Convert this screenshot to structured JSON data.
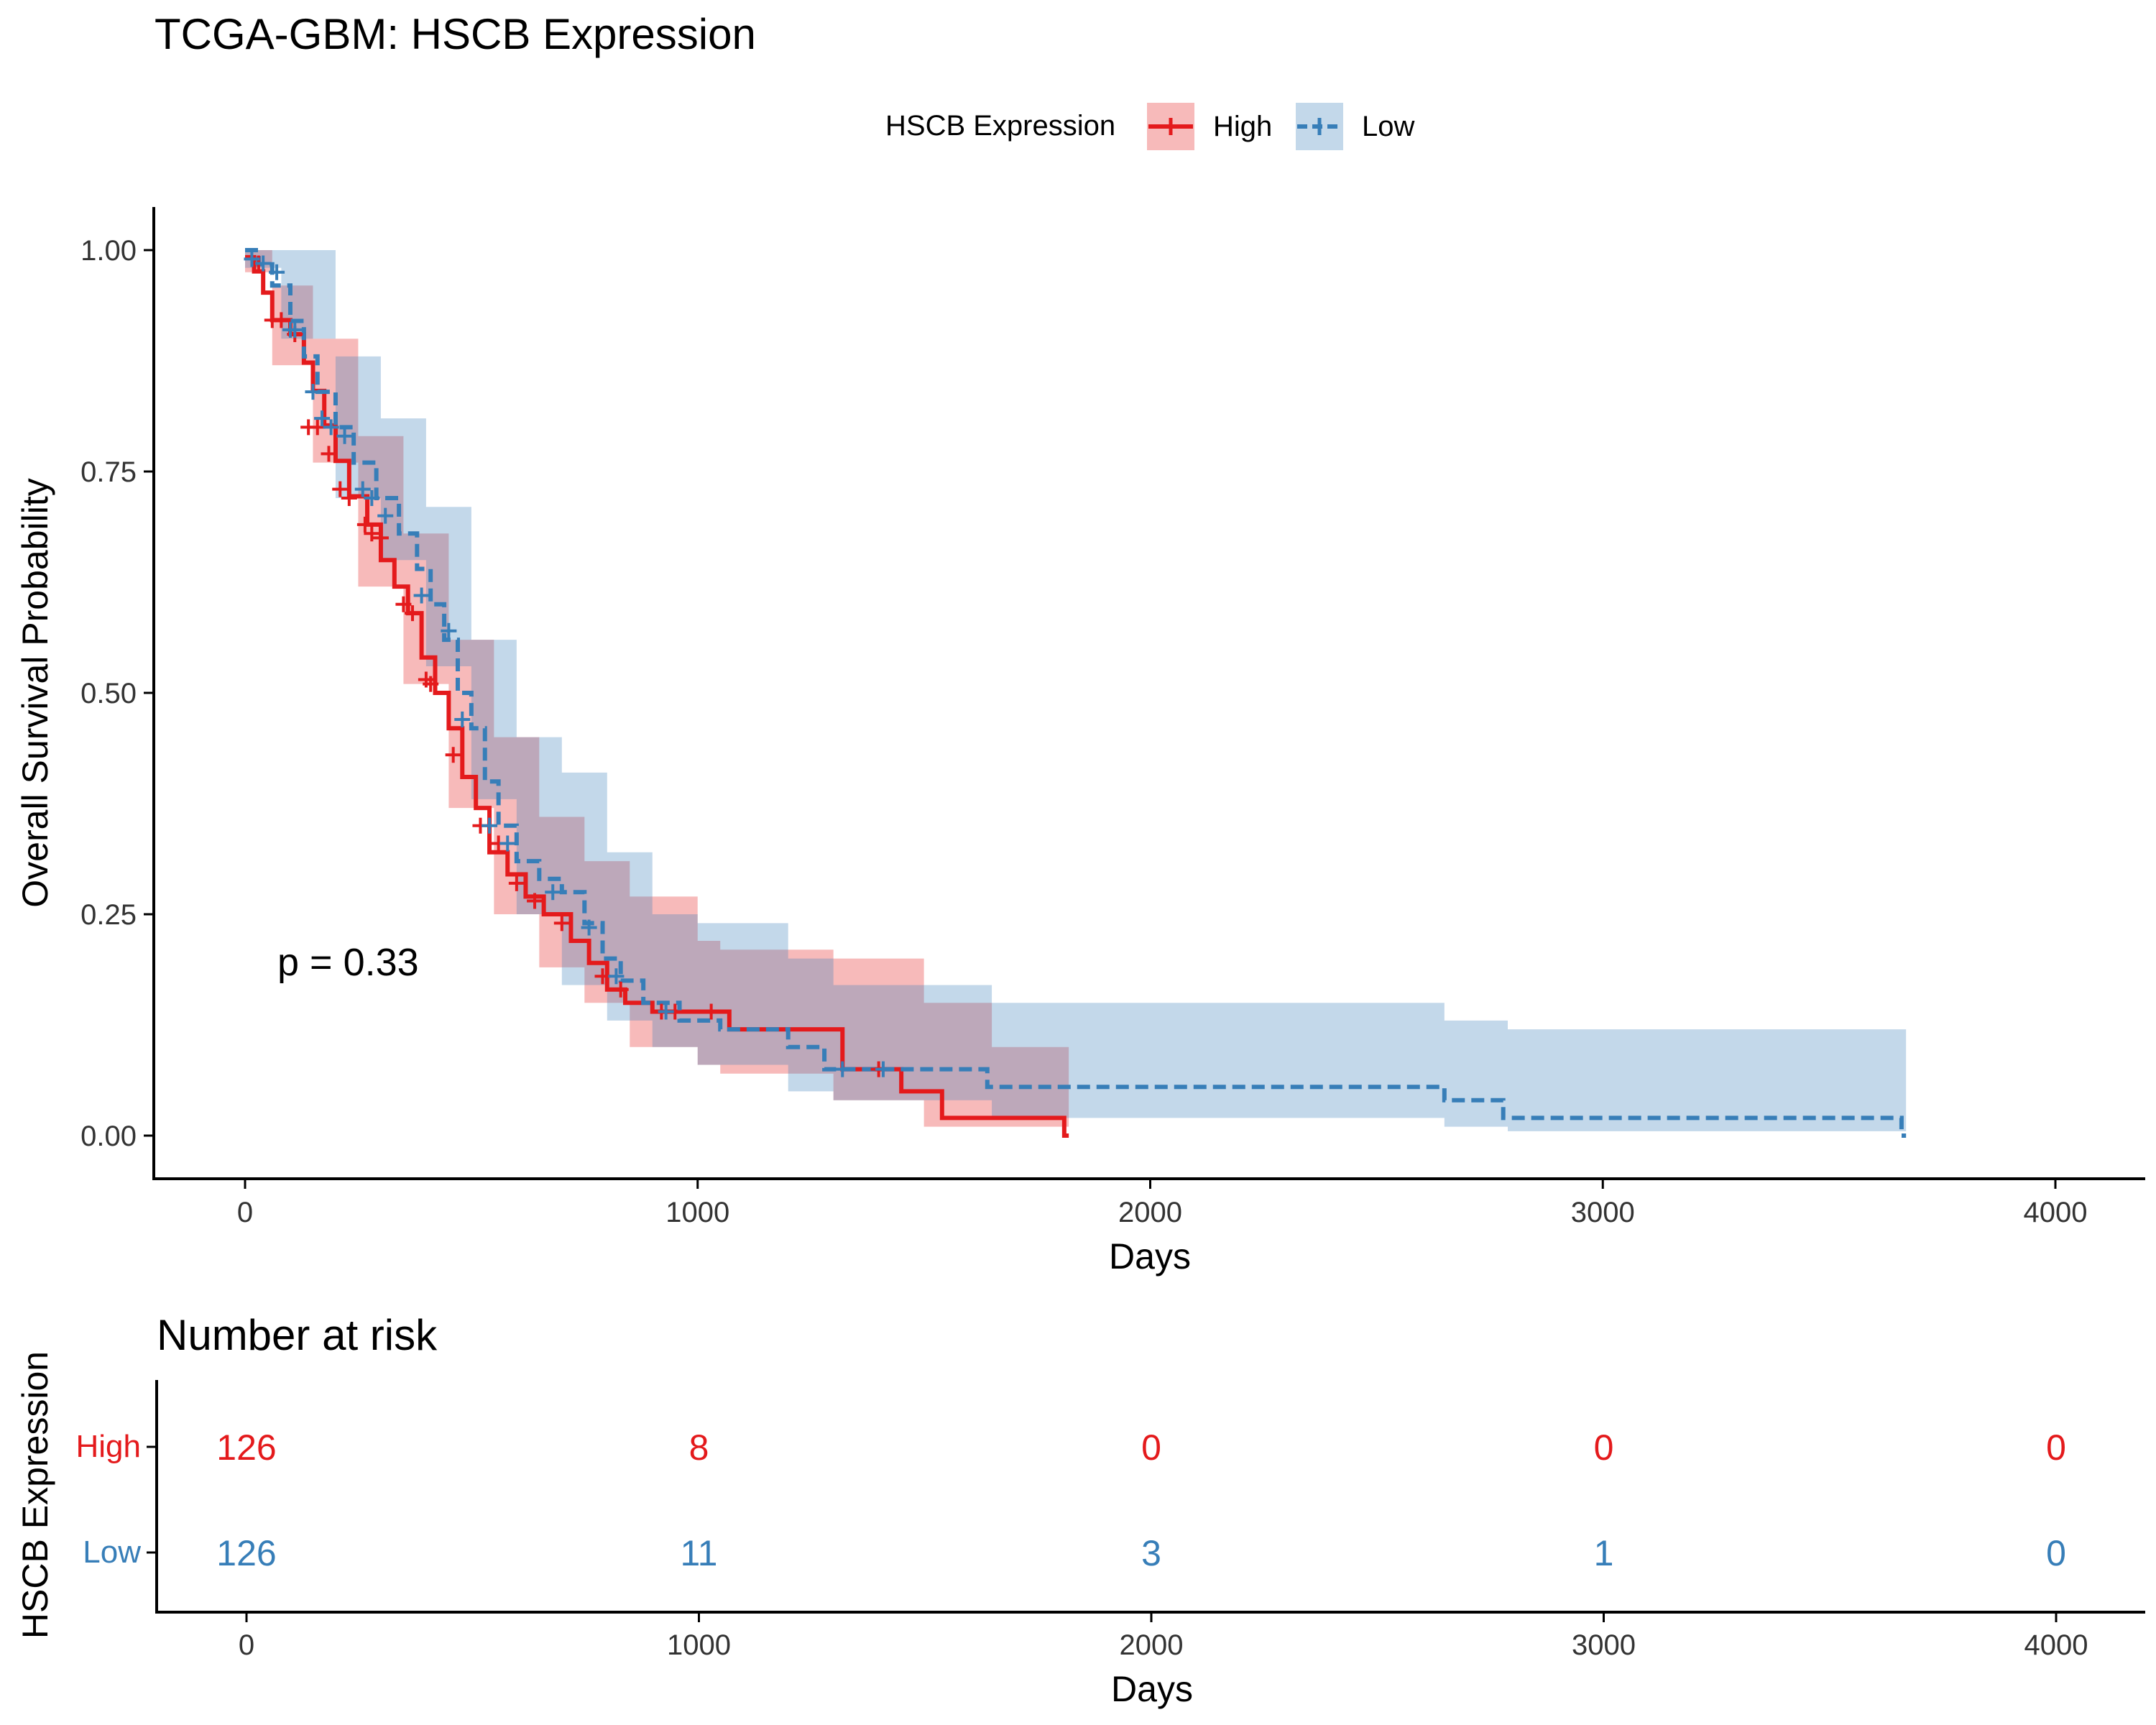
{
  "chart_data": [
    {
      "type": "line",
      "subtype": "kaplan-meier",
      "title": "TCGA-GBM: HSCB Expression",
      "xlabel": "Days",
      "ylabel": "Overall Survival Probability",
      "xlim": [
        -200,
        4200
      ],
      "ylim": [
        -0.05,
        1.05
      ],
      "x_ticks": [
        "0",
        "1000",
        "2000",
        "3000",
        "4000"
      ],
      "y_ticks": [
        "0.00",
        "0.25",
        "0.50",
        "0.75",
        "1.00"
      ],
      "legend": {
        "title": "HSCB Expression",
        "position": "top"
      },
      "annotation": "p = 0.33",
      "colors": {
        "High": "#E41A1C",
        "Low": "#377EB8"
      },
      "series": [
        {
          "name": "High",
          "line_style": "solid",
          "steps": [
            [
              0,
              0.992
            ],
            [
              20,
              0.976
            ],
            [
              40,
              0.952
            ],
            [
              60,
              0.921
            ],
            [
              100,
              0.905
            ],
            [
              130,
              0.873
            ],
            [
              150,
              0.841
            ],
            [
              175,
              0.802
            ],
            [
              200,
              0.762
            ],
            [
              230,
              0.722
            ],
            [
              270,
              0.69
            ],
            [
              300,
              0.65
            ],
            [
              330,
              0.62
            ],
            [
              360,
              0.59
            ],
            [
              390,
              0.54
            ],
            [
              420,
              0.5
            ],
            [
              450,
              0.46
            ],
            [
              480,
              0.405
            ],
            [
              510,
              0.37
            ],
            [
              540,
              0.32
            ],
            [
              580,
              0.295
            ],
            [
              620,
              0.27
            ],
            [
              660,
              0.25
            ],
            [
              720,
              0.22
            ],
            [
              760,
              0.195
            ],
            [
              800,
              0.165
            ],
            [
              840,
              0.15
            ],
            [
              900,
              0.14
            ],
            [
              1070,
              0.12
            ],
            [
              1320,
              0.075
            ],
            [
              1450,
              0.05
            ],
            [
              1540,
              0.02
            ],
            [
              1810,
              0.0
            ]
          ],
          "end": 1820,
          "ci": [
            [
              0,
              1.0,
              0.975
            ],
            [
              60,
              0.96,
              0.87
            ],
            [
              150,
              0.9,
              0.76
            ],
            [
              250,
              0.79,
              0.62
            ],
            [
              350,
              0.68,
              0.51
            ],
            [
              450,
              0.56,
              0.37
            ],
            [
              550,
              0.45,
              0.25
            ],
            [
              650,
              0.36,
              0.19
            ],
            [
              750,
              0.31,
              0.15
            ],
            [
              850,
              0.27,
              0.1
            ],
            [
              1000,
              0.22,
              0.08
            ],
            [
              1050,
              0.21,
              0.07
            ],
            [
              1300,
              0.2,
              0.04
            ],
            [
              1500,
              0.15,
              0.01
            ],
            [
              1650,
              0.1,
              0.01
            ],
            [
              1820,
              0.1,
              0.01
            ]
          ],
          "censor": [
            [
              30,
              0.985
            ],
            [
              60,
              0.921
            ],
            [
              80,
              0.921
            ],
            [
              110,
              0.905
            ],
            [
              140,
              0.8
            ],
            [
              160,
              0.8
            ],
            [
              185,
              0.77
            ],
            [
              210,
              0.73
            ],
            [
              230,
              0.72
            ],
            [
              265,
              0.69
            ],
            [
              280,
              0.68
            ],
            [
              300,
              0.675
            ],
            [
              350,
              0.6
            ],
            [
              370,
              0.59
            ],
            [
              400,
              0.515
            ],
            [
              410,
              0.51
            ],
            [
              460,
              0.43
            ],
            [
              520,
              0.35
            ],
            [
              560,
              0.33
            ],
            [
              600,
              0.285
            ],
            [
              640,
              0.265
            ],
            [
              700,
              0.24
            ],
            [
              790,
              0.18
            ],
            [
              830,
              0.165
            ],
            [
              920,
              0.14
            ],
            [
              950,
              0.14
            ],
            [
              1030,
              0.14
            ],
            [
              1400,
              0.075
            ]
          ],
          "risk": [
            126,
            8,
            0,
            0,
            0
          ]
        },
        {
          "name": "Low",
          "line_style": "dashed",
          "steps": [
            [
              0,
              1.0
            ],
            [
              30,
              0.984
            ],
            [
              60,
              0.96
            ],
            [
              100,
              0.92
            ],
            [
              130,
              0.88
            ],
            [
              160,
              0.84
            ],
            [
              200,
              0.8
            ],
            [
              240,
              0.76
            ],
            [
              290,
              0.72
            ],
            [
              340,
              0.68
            ],
            [
              380,
              0.64
            ],
            [
              410,
              0.6
            ],
            [
              440,
              0.56
            ],
            [
              470,
              0.5
            ],
            [
              500,
              0.46
            ],
            [
              530,
              0.4
            ],
            [
              560,
              0.35
            ],
            [
              600,
              0.31
            ],
            [
              650,
              0.29
            ],
            [
              700,
              0.275
            ],
            [
              750,
              0.24
            ],
            [
              790,
              0.2
            ],
            [
              830,
              0.175
            ],
            [
              880,
              0.15
            ],
            [
              960,
              0.13
            ],
            [
              1050,
              0.12
            ],
            [
              1200,
              0.1
            ],
            [
              1280,
              0.075
            ],
            [
              1640,
              0.055
            ],
            [
              2650,
              0.04
            ],
            [
              2780,
              0.02
            ],
            [
              3660,
              0.0
            ]
          ],
          "end": 3670,
          "ci": [
            [
              0,
              1.0,
              0.98
            ],
            [
              80,
              1.0,
              0.9
            ],
            [
              200,
              0.88,
              0.72
            ],
            [
              300,
              0.81,
              0.65
            ],
            [
              400,
              0.71,
              0.53
            ],
            [
              500,
              0.56,
              0.38
            ],
            [
              600,
              0.45,
              0.25
            ],
            [
              700,
              0.41,
              0.17
            ],
            [
              800,
              0.32,
              0.13
            ],
            [
              900,
              0.25,
              0.1
            ],
            [
              1000,
              0.24,
              0.08
            ],
            [
              1200,
              0.2,
              0.05
            ],
            [
              1300,
              0.17,
              0.04
            ],
            [
              1650,
              0.15,
              0.02
            ],
            [
              2650,
              0.13,
              0.01
            ],
            [
              2790,
              0.12,
              0.005
            ],
            [
              3670,
              0.12,
              0.005
            ]
          ],
          "censor": [
            [
              15,
              0.99
            ],
            [
              40,
              0.985
            ],
            [
              70,
              0.975
            ],
            [
              100,
              0.91
            ],
            [
              110,
              0.91
            ],
            [
              150,
              0.84
            ],
            [
              170,
              0.81
            ],
            [
              190,
              0.8
            ],
            [
              220,
              0.79
            ],
            [
              260,
              0.73
            ],
            [
              280,
              0.72
            ],
            [
              310,
              0.7
            ],
            [
              390,
              0.61
            ],
            [
              450,
              0.57
            ],
            [
              480,
              0.47
            ],
            [
              540,
              0.35
            ],
            [
              580,
              0.33
            ],
            [
              680,
              0.275
            ],
            [
              760,
              0.235
            ],
            [
              820,
              0.18
            ],
            [
              930,
              0.14
            ],
            [
              1320,
              0.075
            ],
            [
              1410,
              0.075
            ]
          ],
          "risk": [
            126,
            11,
            3,
            1,
            0
          ]
        }
      ]
    },
    {
      "type": "table",
      "title": "Number at risk",
      "xlabel": "Days",
      "ylabel": "HSCB Expression",
      "x": [
        0,
        1000,
        2000,
        3000,
        4000
      ],
      "x_ticks": [
        "0",
        "1000",
        "2000",
        "3000",
        "4000"
      ],
      "rows": [
        {
          "name": "High",
          "values": [
            "126",
            "8",
            "0",
            "0",
            "0"
          ]
        },
        {
          "name": "Low",
          "values": [
            "126",
            "11",
            "3",
            "1",
            "0"
          ]
        }
      ]
    }
  ]
}
